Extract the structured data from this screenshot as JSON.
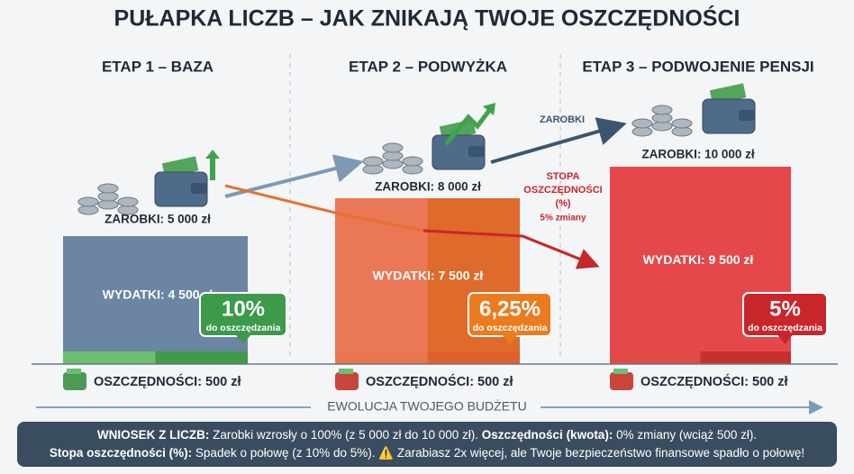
{
  "title": "PUŁAPKA LICZB – JAK ZNIKAJĄ TWOJE OSZCZĘDNOŚCI",
  "stages": [
    {
      "heading": "ETAP 1 – BAZA",
      "earnings": "ZAROBKI: 5 000 zł",
      "expenses": "WYDATKI: 4 500 zł",
      "rate": "10%",
      "rate_caption": "do oszczędzania",
      "savings": "OSZCZĘDNOŚCI: 500 zł"
    },
    {
      "heading": "ETAP 2 – PODWYŻKA",
      "earnings": "ZAROBKI: 8 000 zł",
      "expenses": "WYDATKI: 7 500 zł",
      "rate": "6,25%",
      "rate_caption": "do oszczędzania",
      "savings": "OSZCZĘDNOŚCI: 500 zł"
    },
    {
      "heading": "ETAP 3 – PODWOJENIE PENSJI",
      "earnings": "ZAROBKI: 10 000 zł",
      "expenses": "WYDATKI: 9 500 zł",
      "rate": "5%",
      "rate_caption": "do oszczędzania",
      "savings": "OSZCZĘDNOŚCI: 500 zł"
    }
  ],
  "annotations": {
    "earnings_arrow": "ZAROBKI",
    "rate_note": [
      "STOPA",
      "OSZCZĘDNOŚCI",
      "(%)",
      "5% zmiany"
    ]
  },
  "timeline": "EWOLUCJA TWOJEGO BUDŻETU",
  "conclusion": [
    [
      {
        "text": "WNIOSEK Z LICZB:",
        "bold": true
      },
      {
        "text": " Zarobki wzrosły o 100% (z 5 000 zł do 10 000 zł). ",
        "bold": false
      },
      {
        "text": "Oszczędności (kwota):",
        "bold": true
      },
      {
        "text": " 0% zmiany (wciąż 500 zł).",
        "bold": false
      }
    ],
    [
      {
        "text": "Stopa oszczędności (%):",
        "bold": true
      },
      {
        "text": " Spadek o połowę (z 10% do 5%). ⚠️ Zarabiasz 2x więcej, ale Twoje bezpieczeństwo finansowe spadło o połowę!",
        "bold": false
      }
    ]
  ]
}
